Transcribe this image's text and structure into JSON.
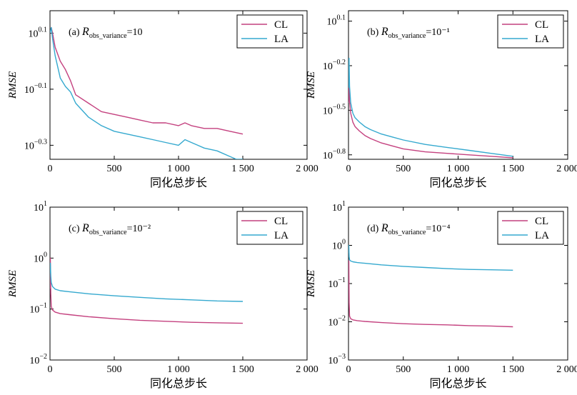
{
  "colors": {
    "CL": "#c4417f",
    "LA": "#35a9cf"
  },
  "chart_data": [
    {
      "type": "line",
      "panel_label": "(a)",
      "annotation": {
        "prefix": "R",
        "subscript": "obs_variance",
        "suffix": "=10"
      },
      "xlabel": "同化总步长",
      "ylabel": "RMSE",
      "yscale": "log",
      "xlim": [
        0,
        2000
      ],
      "ylim_log10": [
        -0.35,
        0.18
      ],
      "xticks": [
        0,
        500,
        1000,
        1500,
        2000
      ],
      "xtick_labels": [
        "0",
        "500",
        "1 000",
        "1 500",
        "2 000"
      ],
      "yticks_log10": [
        -0.3,
        -0.1,
        0.1
      ],
      "ytick_labels": [
        {
          "base": "10",
          "exp": "−0.3"
        },
        {
          "base": "10",
          "exp": "−0.1"
        },
        {
          "base": "10",
          "exp": "0.1"
        }
      ],
      "legend": [
        "CL",
        "LA"
      ],
      "legend_position": "top-right",
      "series": [
        {
          "name": "CL",
          "x": [
            0,
            10,
            20,
            40,
            80,
            120,
            160,
            200,
            300,
            400,
            500,
            600,
            700,
            800,
            900,
            1000,
            1050,
            1100,
            1200,
            1300,
            1400,
            1500
          ],
          "log10_y": [
            0.1,
            0.12,
            0.1,
            0.05,
            0.0,
            -0.03,
            -0.07,
            -0.12,
            -0.15,
            -0.18,
            -0.19,
            -0.2,
            -0.21,
            -0.22,
            -0.22,
            -0.23,
            -0.22,
            -0.23,
            -0.24,
            -0.24,
            -0.25,
            -0.26
          ]
        },
        {
          "name": "LA",
          "x": [
            0,
            10,
            20,
            40,
            80,
            120,
            160,
            200,
            300,
            400,
            500,
            600,
            700,
            800,
            900,
            1000,
            1050,
            1100,
            1150,
            1200,
            1300,
            1400,
            1450,
            1500
          ],
          "log10_y": [
            0.1,
            0.12,
            0.08,
            0.02,
            -0.06,
            -0.09,
            -0.11,
            -0.15,
            -0.2,
            -0.23,
            -0.25,
            -0.26,
            -0.27,
            -0.28,
            -0.29,
            -0.3,
            -0.28,
            -0.29,
            -0.3,
            -0.31,
            -0.32,
            -0.34,
            -0.35,
            -0.35
          ]
        }
      ]
    },
    {
      "type": "line",
      "panel_label": "(b)",
      "annotation": {
        "prefix": "R",
        "subscript": "obs_variance",
        "suffix": "=10⁻¹"
      },
      "xlabel": "同化总步长",
      "ylabel": "RMSE",
      "yscale": "log",
      "xlim": [
        0,
        2000
      ],
      "ylim_log10": [
        -0.83,
        0.17
      ],
      "xticks": [
        0,
        500,
        1000,
        1500,
        2000
      ],
      "xtick_labels": [
        "0",
        "500",
        "1 000",
        "1 500",
        "2 000"
      ],
      "yticks_log10": [
        -0.8,
        -0.5,
        -0.2,
        0.1
      ],
      "ytick_labels": [
        {
          "base": "10",
          "exp": "−0.8"
        },
        {
          "base": "10",
          "exp": "−0.5"
        },
        {
          "base": "10",
          "exp": "−0.2"
        },
        {
          "base": "10",
          "exp": "0.1"
        }
      ],
      "legend": [
        "CL",
        "LA"
      ],
      "legend_position": "top-right",
      "series": [
        {
          "name": "CL",
          "x": [
            0,
            5,
            10,
            20,
            40,
            60,
            100,
            150,
            200,
            300,
            400,
            500,
            700,
            900,
            1100,
            1300,
            1500
          ],
          "log10_y": [
            -0.45,
            -0.3,
            -0.44,
            -0.52,
            -0.58,
            -0.61,
            -0.64,
            -0.67,
            -0.69,
            -0.72,
            -0.74,
            -0.76,
            -0.78,
            -0.79,
            -0.8,
            -0.81,
            -0.82
          ]
        },
        {
          "name": "LA",
          "x": [
            0,
            5,
            10,
            20,
            40,
            60,
            100,
            150,
            200,
            300,
            400,
            500,
            700,
            900,
            1100,
            1300,
            1500
          ],
          "log10_y": [
            -0.35,
            -0.15,
            -0.34,
            -0.45,
            -0.52,
            -0.55,
            -0.58,
            -0.61,
            -0.63,
            -0.66,
            -0.68,
            -0.7,
            -0.73,
            -0.75,
            -0.77,
            -0.79,
            -0.81
          ]
        }
      ]
    },
    {
      "type": "line",
      "panel_label": "(c)",
      "annotation": {
        "prefix": "R",
        "subscript": "obs_variance",
        "suffix": "=10⁻²"
      },
      "xlabel": "同化总步长",
      "ylabel": "RMSE",
      "yscale": "log",
      "xlim": [
        0,
        2000
      ],
      "ylim_log10": [
        -2,
        1
      ],
      "xticks": [
        0,
        500,
        1000,
        1500,
        2000
      ],
      "xtick_labels": [
        "0",
        "500",
        "1 000",
        "1 500",
        "2 000"
      ],
      "yticks_log10": [
        -2,
        -1,
        0,
        1
      ],
      "ytick_labels": [
        {
          "base": "10",
          "exp": "−2"
        },
        {
          "base": "10",
          "exp": "−1"
        },
        {
          "base": "10",
          "exp": "0"
        },
        {
          "base": "10",
          "exp": "1"
        }
      ],
      "legend": [
        "CL",
        "LA"
      ],
      "legend_position": "top-right",
      "series": [
        {
          "name": "CL",
          "x": [
            0,
            3,
            6,
            10,
            20,
            40,
            80,
            150,
            300,
            500,
            700,
            900,
            1100,
            1300,
            1500
          ],
          "log10_y": [
            -0.6,
            0.0,
            -0.7,
            -0.95,
            -1.02,
            -1.06,
            -1.09,
            -1.11,
            -1.15,
            -1.19,
            -1.22,
            -1.24,
            -1.26,
            -1.27,
            -1.28
          ]
        },
        {
          "name": "LA",
          "x": [
            0,
            3,
            6,
            10,
            20,
            40,
            80,
            150,
            300,
            500,
            700,
            900,
            1100,
            1300,
            1500
          ],
          "log10_y": [
            -0.3,
            -0.1,
            -0.35,
            -0.48,
            -0.56,
            -0.61,
            -0.64,
            -0.66,
            -0.7,
            -0.74,
            -0.77,
            -0.8,
            -0.82,
            -0.84,
            -0.85
          ]
        }
      ]
    },
    {
      "type": "line",
      "panel_label": "(d)",
      "annotation": {
        "prefix": "R",
        "subscript": "obs_variance",
        "suffix": "=10⁻⁴"
      },
      "xlabel": "同化总步长",
      "ylabel": "RMSE",
      "yscale": "log",
      "xlim": [
        0,
        2000
      ],
      "ylim_log10": [
        -3,
        1
      ],
      "xticks": [
        0,
        500,
        1000,
        1500,
        2000
      ],
      "xtick_labels": [
        "0",
        "500",
        "1 000",
        "1 500",
        "2 000"
      ],
      "yticks_log10": [
        -3,
        -2,
        -1,
        0,
        1
      ],
      "ytick_labels": [
        {
          "base": "10",
          "exp": "−3"
        },
        {
          "base": "10",
          "exp": "−2"
        },
        {
          "base": "10",
          "exp": "−1"
        },
        {
          "base": "10",
          "exp": "0"
        },
        {
          "base": "10",
          "exp": "1"
        }
      ],
      "legend": [
        "CL",
        "LA"
      ],
      "legend_position": "top-right",
      "series": [
        {
          "name": "CL",
          "x": [
            0,
            3,
            6,
            10,
            20,
            40,
            80,
            150,
            300,
            500,
            700,
            900,
            1100,
            1300,
            1500
          ],
          "log10_y": [
            -0.5,
            -0.4,
            -1.5,
            -1.85,
            -1.92,
            -1.95,
            -1.97,
            -1.99,
            -2.02,
            -2.05,
            -2.07,
            -2.08,
            -2.1,
            -2.11,
            -2.13
          ]
        },
        {
          "name": "LA",
          "x": [
            0,
            3,
            6,
            10,
            20,
            40,
            80,
            150,
            300,
            500,
            700,
            900,
            1100,
            1300,
            1500
          ],
          "log10_y": [
            -0.2,
            0.0,
            -0.3,
            -0.38,
            -0.41,
            -0.43,
            -0.45,
            -0.47,
            -0.51,
            -0.55,
            -0.58,
            -0.61,
            -0.63,
            -0.64,
            -0.65
          ]
        }
      ]
    }
  ]
}
